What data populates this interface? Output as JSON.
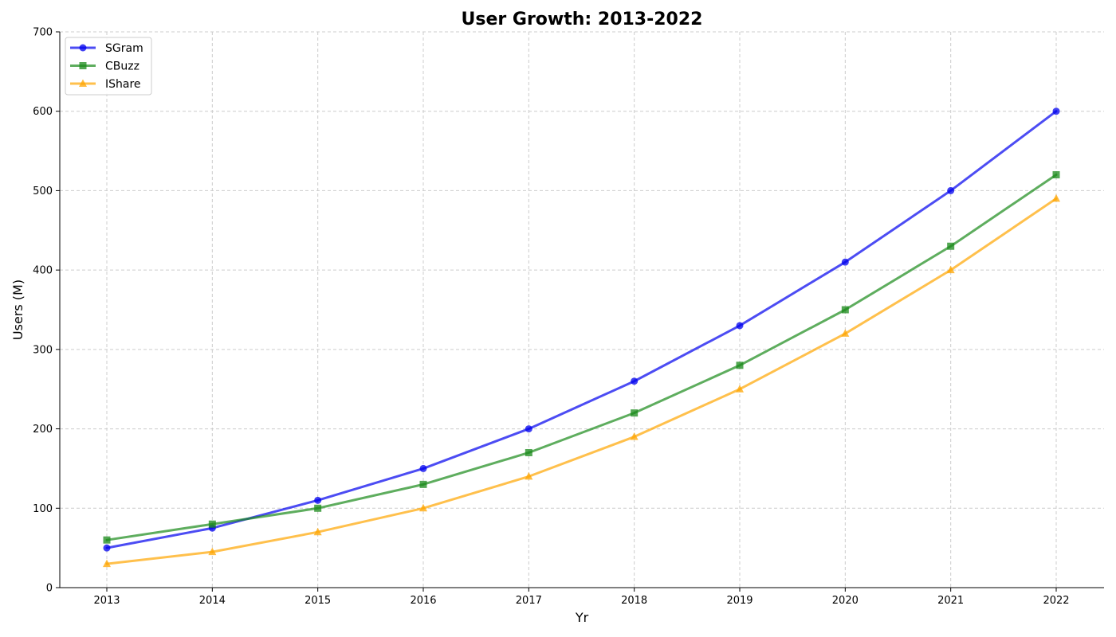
{
  "chart_data": {
    "type": "line",
    "title": "User Growth: 2013-2022",
    "xlabel": "Yr",
    "ylabel": "Users (M)",
    "x": [
      2013,
      2014,
      2015,
      2016,
      2017,
      2018,
      2019,
      2020,
      2021,
      2022
    ],
    "ylim": [
      0,
      700
    ],
    "yticks": [
      0,
      100,
      200,
      300,
      400,
      500,
      600,
      700
    ],
    "grid": true,
    "legend_position": "top-left",
    "series": [
      {
        "name": "SGram",
        "color": "#0000ee",
        "marker": "circle",
        "values": [
          50,
          75,
          110,
          150,
          200,
          260,
          330,
          410,
          500,
          600
        ]
      },
      {
        "name": "CBuzz",
        "color": "#1a8a1a",
        "marker": "square",
        "values": [
          60,
          80,
          100,
          130,
          170,
          220,
          280,
          350,
          430,
          520
        ]
      },
      {
        "name": "IShare",
        "color": "#ffa500",
        "marker": "triangle",
        "values": [
          30,
          45,
          70,
          100,
          140,
          190,
          250,
          320,
          400,
          490
        ]
      }
    ]
  }
}
